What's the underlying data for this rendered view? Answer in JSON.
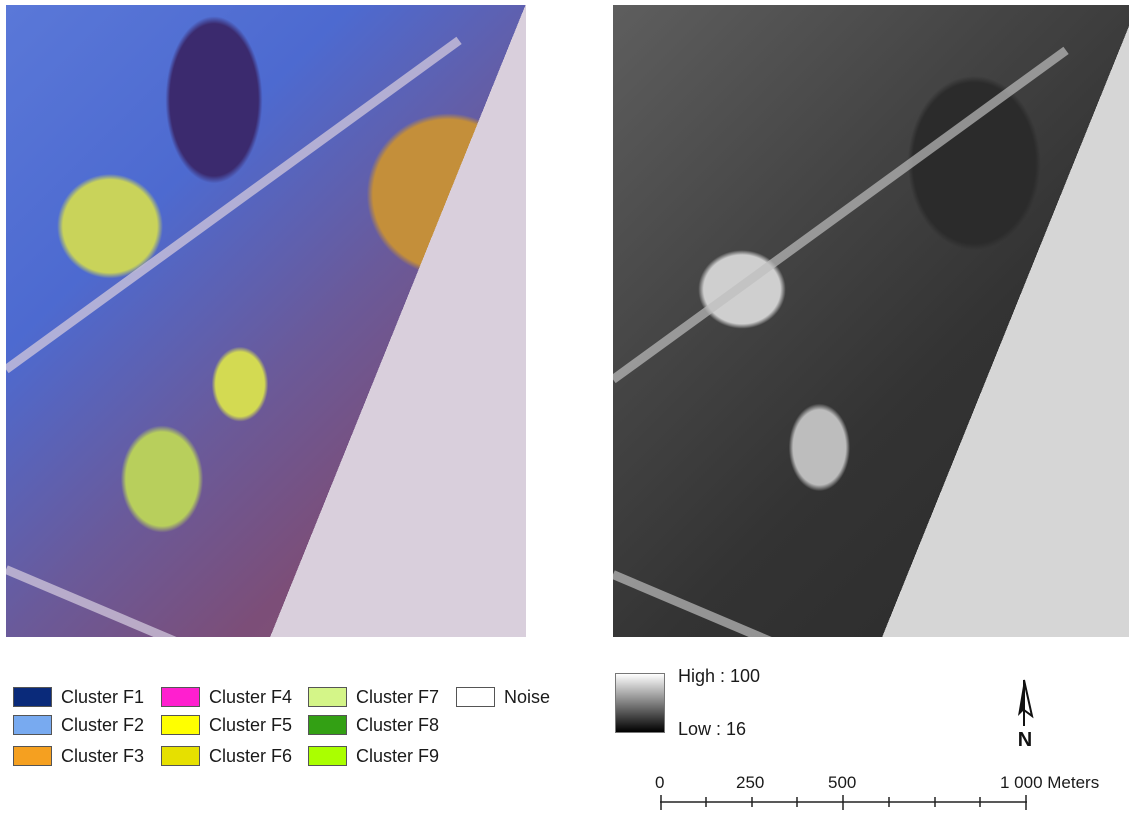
{
  "legend": {
    "items": [
      {
        "label": "Cluster F1",
        "color": "#0a2a7a"
      },
      {
        "label": "Cluster F2",
        "color": "#78aaf0"
      },
      {
        "label": "Cluster F3",
        "color": "#f5a020"
      },
      {
        "label": "Cluster F4",
        "color": "#ff1fcf"
      },
      {
        "label": "Cluster F5",
        "color": "#ffff00"
      },
      {
        "label": "Cluster F6",
        "color": "#e6e000"
      },
      {
        "label": "Cluster F7",
        "color": "#d4f588"
      },
      {
        "label": "Cluster F8",
        "color": "#33a014"
      },
      {
        "label": "Cluster F9",
        "color": "#aaff00"
      },
      {
        "label": "Noise",
        "color": "#ffffff"
      }
    ]
  },
  "ramp": {
    "high_label": "High : 100",
    "low_label": "Low : 16"
  },
  "north_arrow": {
    "label": "N",
    "icon": "north-arrow-icon"
  },
  "scale": {
    "ticks": [
      "0",
      "250",
      "500",
      "1 000 Meters"
    ]
  }
}
